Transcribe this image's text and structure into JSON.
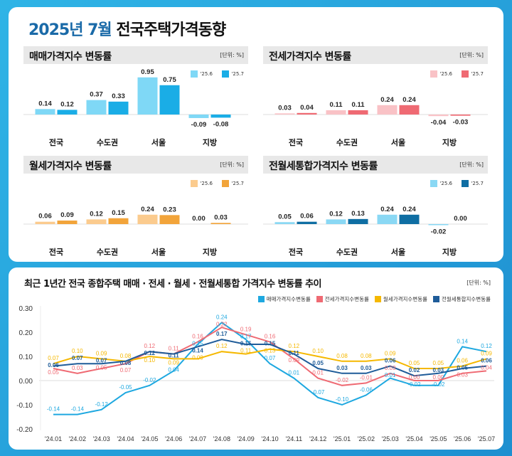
{
  "title": {
    "highlight": "2025년 7월",
    "rest": "전국주택가격동향"
  },
  "chart_data": [
    {
      "type": "bar",
      "title": "매매가격지수 변동률",
      "unit": "[단위: %]",
      "categories": [
        "전국",
        "수도권",
        "서울",
        "지방"
      ],
      "series": [
        {
          "name": "'25.6",
          "values": [
            0.14,
            0.37,
            0.95,
            -0.09
          ],
          "color": "#7fd8f6"
        },
        {
          "name": "'25.7",
          "values": [
            0.12,
            0.33,
            0.75,
            -0.08
          ],
          "color": "#1aade6"
        }
      ]
    },
    {
      "type": "bar",
      "title": "전세가격지수 변동률",
      "unit": "[단위: %]",
      "categories": [
        "전국",
        "수도권",
        "서울",
        "지방"
      ],
      "series": [
        {
          "name": "'25.6",
          "values": [
            0.03,
            0.11,
            0.24,
            -0.04
          ],
          "color": "#f9c2c6"
        },
        {
          "name": "'25.7",
          "values": [
            0.04,
            0.11,
            0.24,
            -0.03
          ],
          "color": "#ef6a73"
        }
      ]
    },
    {
      "type": "bar",
      "title": "월세가격지수 변동률",
      "unit": "[단위: %]",
      "categories": [
        "전국",
        "수도권",
        "서울",
        "지방"
      ],
      "series": [
        {
          "name": "'25.6",
          "values": [
            0.06,
            0.12,
            0.24,
            0.0
          ],
          "color": "#fbcb8e"
        },
        {
          "name": "'25.7",
          "values": [
            0.09,
            0.15,
            0.23,
            0.03
          ],
          "color": "#f2a43a"
        }
      ]
    },
    {
      "type": "bar",
      "title": "전월세통합가격지수 변동률",
      "unit": "[단위: %]",
      "categories": [
        "전국",
        "수도권",
        "서울",
        "지방"
      ],
      "series": [
        {
          "name": "'25.6",
          "values": [
            0.05,
            0.12,
            0.24,
            -0.02
          ],
          "color": "#8ad8f4"
        },
        {
          "name": "'25.7",
          "values": [
            0.06,
            0.13,
            0.24,
            0.0
          ],
          "color": "#0f6ea3"
        }
      ]
    },
    {
      "type": "line",
      "title": "최근 1년간 전국 종합주택 매매 · 전세 · 월세 · 전월세통합 가격지수 변동률 추이",
      "unit": "[단위: %]",
      "ylim": [
        -0.2,
        0.3
      ],
      "yticks": [
        "0.30",
        "0.20",
        "0.10",
        "0.00",
        "-0.10",
        "-0.20"
      ],
      "legend": "top-right",
      "x": [
        "'24.01",
        "'24.02",
        "'24.03",
        "'24.04",
        "'24.05",
        "'24.06",
        "'24.07",
        "'24.08",
        "'24.09",
        "'24.10",
        "'24.11",
        "'24.12",
        "'25.01",
        "'25.02",
        "'25.03",
        "'25.04",
        "'25.05",
        "'25.06",
        "'25.07"
      ],
      "series": [
        {
          "name": "매매가격지수변동률",
          "color": "#1ea8e0",
          "values": [
            -0.14,
            -0.14,
            -0.12,
            -0.05,
            -0.02,
            0.04,
            0.15,
            0.24,
            0.17,
            0.07,
            0.01,
            -0.07,
            -0.1,
            -0.06,
            0.01,
            -0.02,
            -0.02,
            0.14,
            0.12
          ]
        },
        {
          "name": "전세가격지수변동률",
          "color": "#ef6a73",
          "values": [
            0.05,
            0.03,
            0.05,
            0.07,
            0.12,
            0.11,
            0.16,
            0.22,
            0.19,
            0.16,
            0.09,
            0.01,
            -0.02,
            -0.01,
            0.03,
            0.0,
            0.0,
            0.03,
            0.04
          ]
        },
        {
          "name": "월세가격지수변동률",
          "color": "#f5b800",
          "values": [
            0.07,
            0.1,
            0.09,
            0.08,
            0.1,
            0.09,
            0.09,
            0.12,
            0.11,
            0.13,
            0.12,
            0.1,
            0.08,
            0.08,
            0.09,
            0.05,
            0.05,
            0.06,
            0.09
          ]
        },
        {
          "name": "전월세통합지수변동률",
          "color": "#1f5c99",
          "values": [
            0.06,
            0.07,
            0.07,
            0.08,
            0.12,
            0.11,
            0.14,
            0.17,
            0.15,
            0.15,
            0.11,
            0.05,
            0.03,
            0.03,
            0.06,
            0.02,
            0.03,
            0.05,
            0.06
          ]
        }
      ]
    }
  ]
}
